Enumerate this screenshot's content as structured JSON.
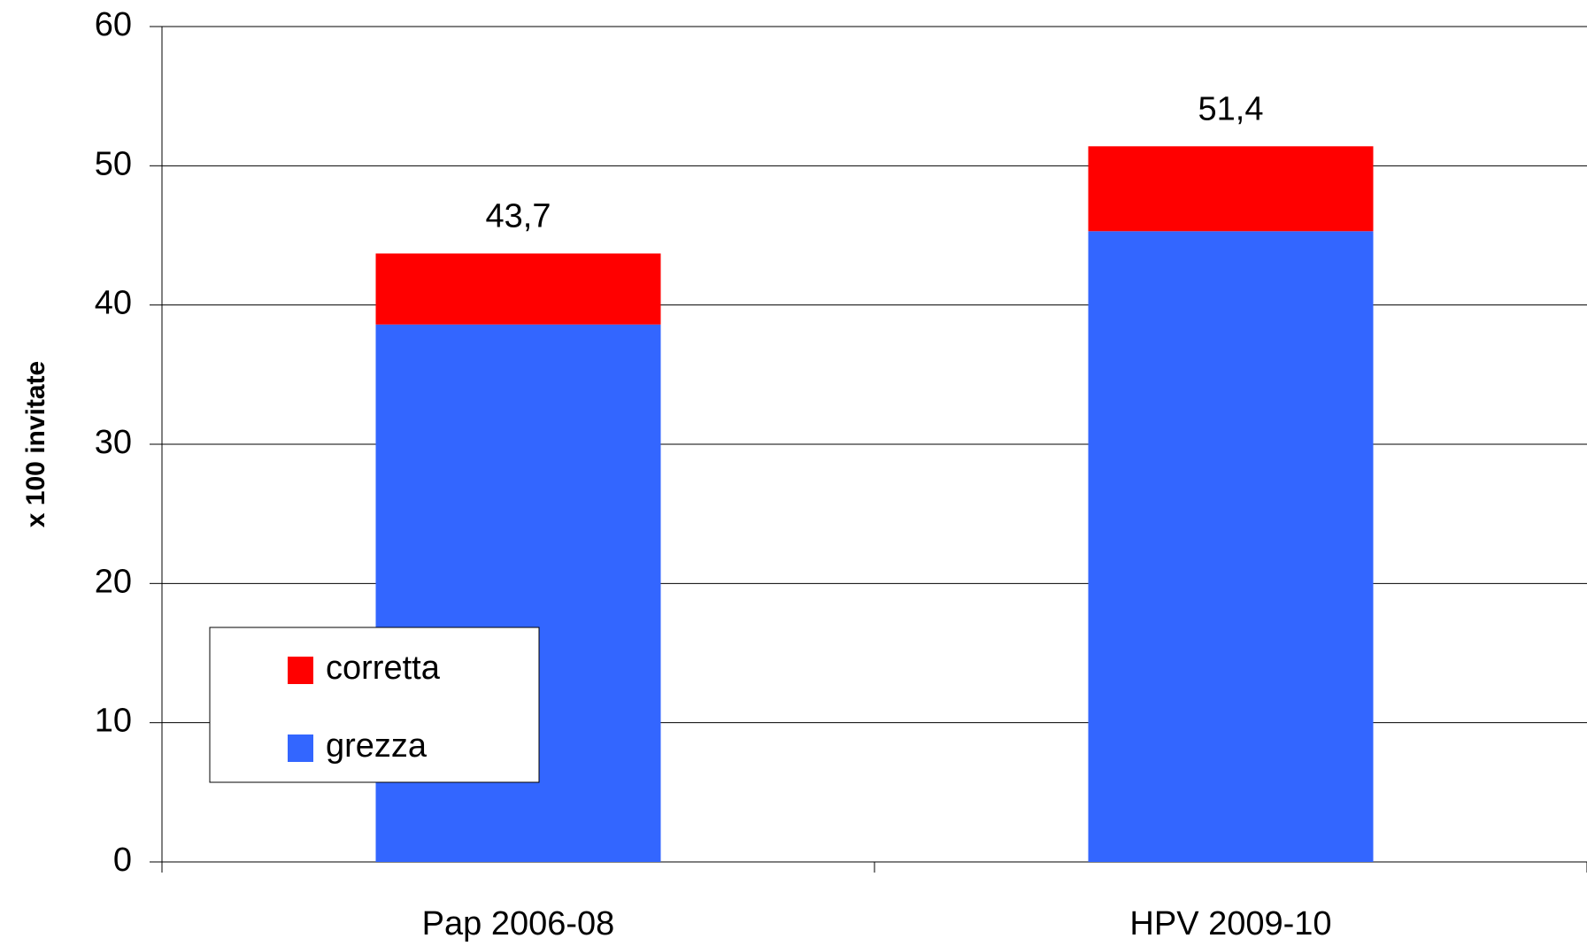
{
  "chart_data": {
    "type": "stacked_bar",
    "y_label": "x 100 invitate",
    "categories": [
      "Pap 2006-08",
      "HPV 2009-10"
    ],
    "series": [
      {
        "name": "grezza",
        "color": "#3366ff",
        "values": [
          38.6,
          45.3
        ]
      },
      {
        "name": "corretta",
        "color": "#ff0000",
        "values": [
          5.1,
          6.1
        ]
      }
    ],
    "totals": [
      43.7,
      51.4
    ],
    "total_labels": [
      "43,7",
      "51,4"
    ],
    "ylim": [
      0,
      60
    ],
    "yticks": [
      0,
      10,
      20,
      30,
      40,
      50,
      60
    ],
    "grid": true
  }
}
